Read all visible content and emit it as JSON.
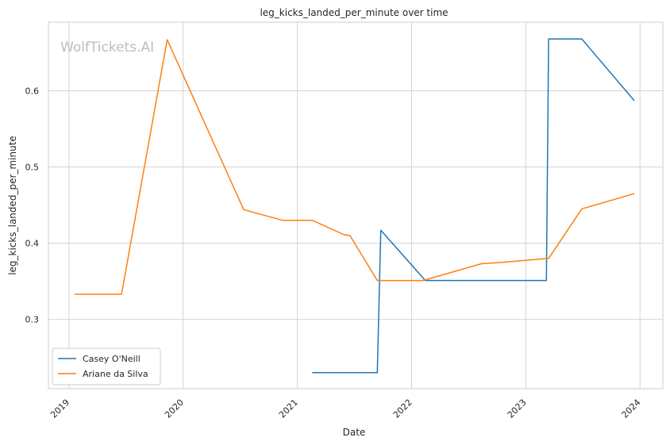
{
  "chart_data": {
    "type": "line",
    "title": "leg_kicks_landed_per_minute over time",
    "xlabel": "Date",
    "ylabel": "leg_kicks_landed_per_minute",
    "watermark": "WolfTickets.AI",
    "xlim": [
      2018.82,
      2024.2
    ],
    "ylim": [
      0.209,
      0.69
    ],
    "x_ticks": [
      2019,
      2020,
      2021,
      2022,
      2023,
      2024
    ],
    "x_tick_labels": [
      "2019",
      "2020",
      "2021",
      "2022",
      "2023",
      "2024"
    ],
    "y_ticks": [
      0.3,
      0.4,
      0.5,
      0.6
    ],
    "y_tick_labels": [
      "0.3",
      "0.4",
      "0.5",
      "0.6"
    ],
    "grid": true,
    "legend_position": "bottom-left",
    "series": [
      {
        "name": "Casey O'Neill",
        "color": "#1f77b4",
        "x": [
          2021.13,
          2021.7,
          2021.73,
          2022.12,
          2023.18,
          2023.2,
          2023.49,
          2023.95
        ],
        "y": [
          0.23,
          0.23,
          0.417,
          0.351,
          0.351,
          0.668,
          0.668,
          0.587
        ]
      },
      {
        "name": "Ariane da Silva",
        "color": "#ff7f0e",
        "x": [
          2019.05,
          2019.46,
          2019.86,
          2020.53,
          2020.87,
          2021.13,
          2021.41,
          2021.46,
          2021.7,
          2022.1,
          2022.61,
          2022.8,
          2023.2,
          2023.49,
          2023.95
        ],
        "y": [
          0.333,
          0.333,
          0.667,
          0.444,
          0.43,
          0.43,
          0.411,
          0.41,
          0.351,
          0.351,
          0.373,
          0.375,
          0.38,
          0.445,
          0.465
        ]
      }
    ]
  }
}
